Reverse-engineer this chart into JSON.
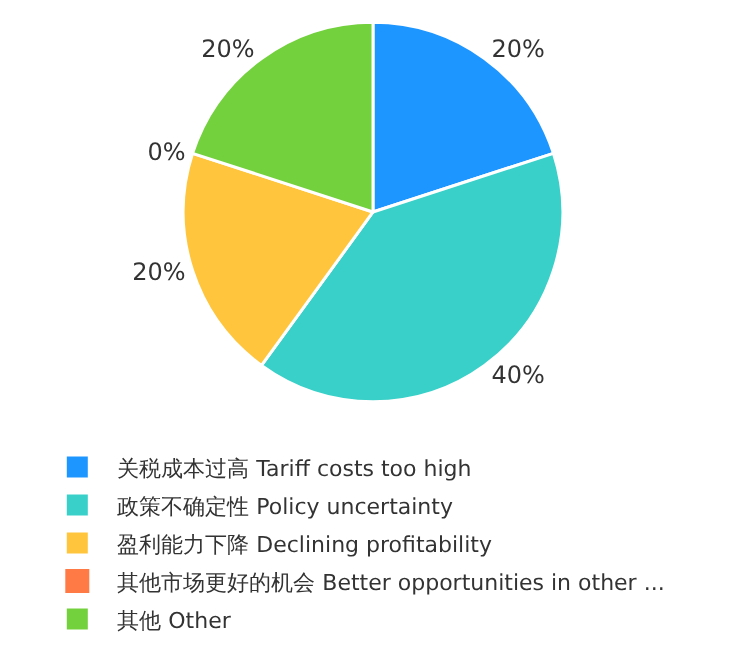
{
  "chart_data": {
    "type": "pie",
    "categories": [
      "关税成本过高 Tariff costs too high",
      "政策不确定性 Policy uncertainty",
      "盈利能力下降 Declining profitability",
      "其他市场更好的机会 Better opportunities in other ...",
      "其他 Other"
    ],
    "values": [
      20,
      40,
      20,
      0,
      20
    ],
    "colors": [
      "#1e96ff",
      "#38d0c8",
      "#ffc53d",
      "#ff7a45",
      "#73d13d"
    ],
    "value_labels": [
      "20%",
      "40%",
      "20%",
      "0%",
      "20%"
    ],
    "legend": "bottom"
  }
}
